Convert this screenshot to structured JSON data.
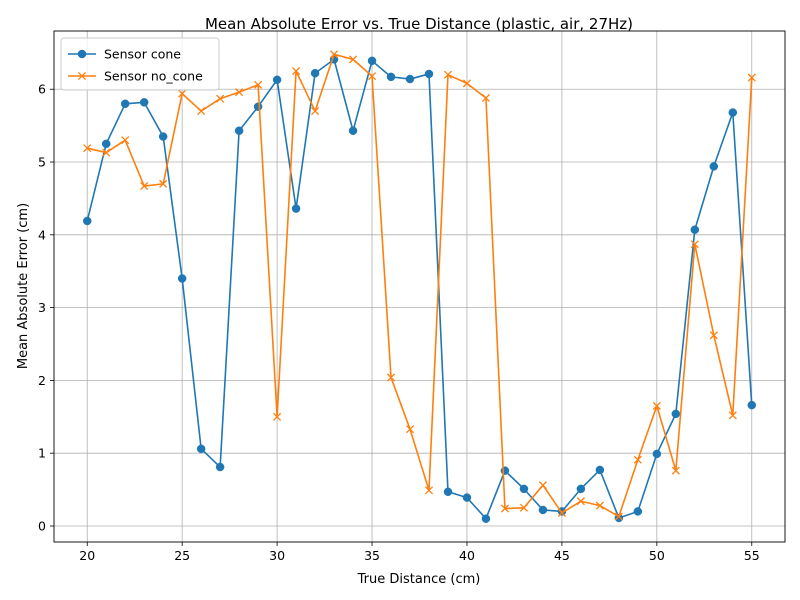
{
  "chart_data": {
    "type": "line",
    "title": "Mean Absolute Error vs. True Distance (plastic, air, 27Hz)",
    "xlabel": "True Distance (cm)",
    "ylabel": "Mean Absolute Error (cm)",
    "xlim": [
      18.25,
      56.75
    ],
    "ylim": [
      -0.22,
      6.8
    ],
    "xticks": [
      20,
      25,
      30,
      35,
      40,
      45,
      50,
      55
    ],
    "yticks": [
      0,
      1,
      2,
      3,
      4,
      5,
      6
    ],
    "grid": true,
    "legend_position": "top-left",
    "x": [
      20,
      21,
      22,
      23,
      24,
      25,
      26,
      27,
      28,
      29,
      30,
      31,
      32,
      33,
      34,
      35,
      36,
      37,
      38,
      39,
      40,
      41,
      42,
      43,
      44,
      45,
      46,
      47,
      48,
      49,
      50,
      51,
      52,
      53,
      54,
      55
    ],
    "series": [
      {
        "name": "Sensor cone",
        "color": "#1f77b4",
        "marker": "circle",
        "values": [
          4.19,
          5.25,
          5.8,
          5.82,
          5.35,
          3.4,
          1.06,
          0.81,
          5.43,
          5.76,
          6.13,
          4.36,
          6.22,
          6.41,
          5.43,
          6.39,
          6.17,
          6.14,
          6.21,
          0.47,
          0.39,
          0.1,
          0.76,
          0.51,
          0.22,
          0.2,
          0.51,
          0.77,
          0.11,
          0.2,
          0.99,
          1.54,
          4.07,
          4.94,
          5.68,
          1.66
        ]
      },
      {
        "name": "Sensor no_cone",
        "color": "#ff7f0e",
        "marker": "x",
        "values": [
          5.19,
          5.13,
          5.3,
          4.67,
          4.7,
          5.94,
          5.7,
          5.87,
          5.96,
          6.06,
          1.5,
          6.25,
          5.7,
          6.48,
          6.41,
          6.18,
          2.04,
          1.33,
          0.49,
          6.2,
          6.08,
          5.88,
          0.24,
          0.25,
          0.56,
          0.18,
          0.34,
          0.28,
          0.13,
          0.91,
          1.65,
          0.76,
          3.87,
          2.62,
          1.52,
          6.16
        ]
      }
    ]
  }
}
